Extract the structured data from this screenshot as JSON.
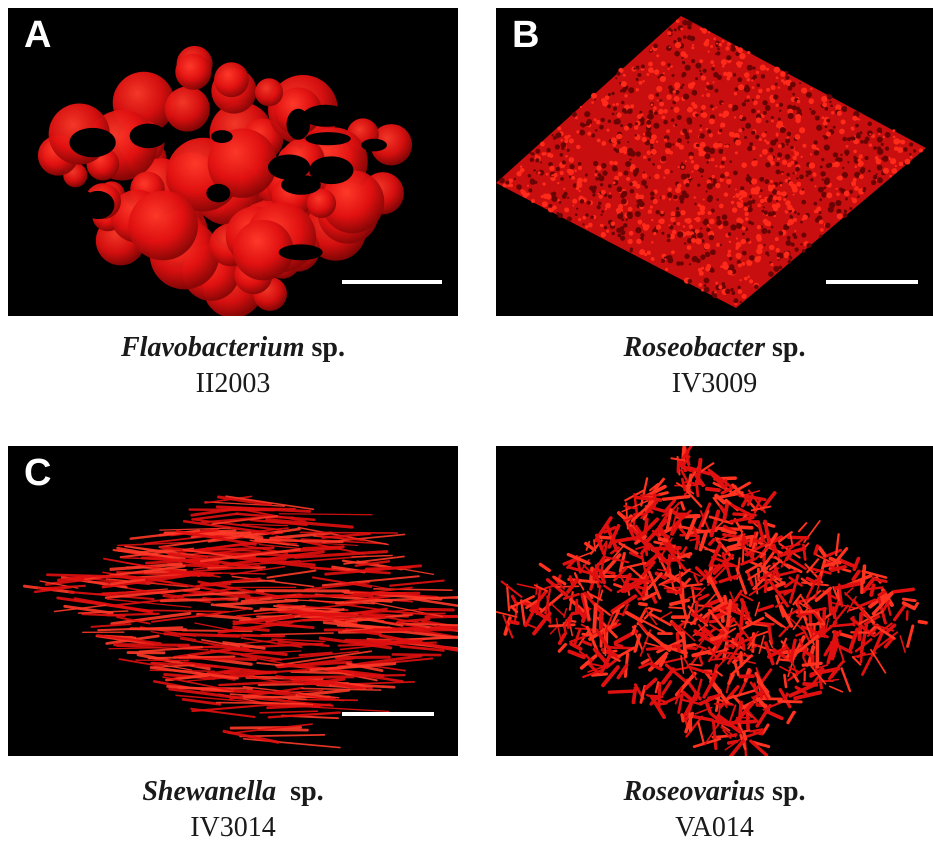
{
  "panels": [
    {
      "letter": "A",
      "genus": "Flavobacterium",
      "suffix": "sp.",
      "strain": "II2003",
      "has_scalebar": true
    },
    {
      "letter": "B",
      "genus": "Roseobacter",
      "suffix": "sp.",
      "strain": "IV3009",
      "has_scalebar": true
    },
    {
      "letter": "C",
      "genus": "Shewanella",
      "suffix": "sp.",
      "strain": "IV3014",
      "has_scalebar": true
    },
    {
      "letter": "",
      "genus": "Roseovarius",
      "suffix": "sp.",
      "strain": "VA014",
      "has_scalebar": false
    }
  ],
  "colors": {
    "biofilm": "#e01010",
    "biofilm_dark": "#8a0606",
    "background": "#000000",
    "scalebar": "#ffffff"
  }
}
